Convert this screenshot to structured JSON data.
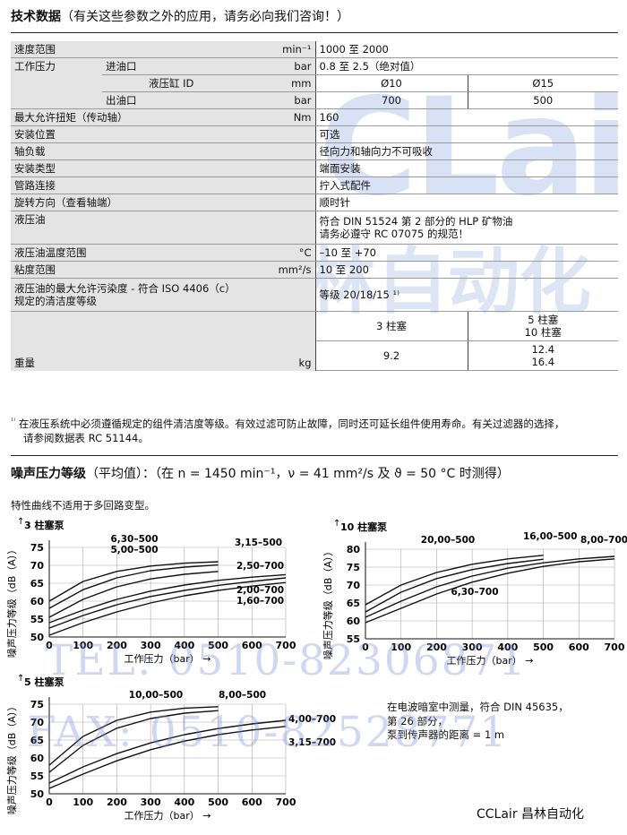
{
  "specs": {
    "title": "技术数据",
    "title_note": "（有关这些参数之外的应用，请务必向我们咨询！）",
    "rows": {
      "speed": {
        "label": "速度范围",
        "unit": "min⁻¹",
        "value": "1000 至 2000"
      },
      "pressure": {
        "label": "工作压力",
        "inlet_label": "进油口",
        "inlet_unit": "bar",
        "inlet_value": "0.8 至 2.5（绝对值）",
        "cyl_label": "液压缸 ID",
        "cyl_unit": "mm",
        "cyl_a": "Ø10",
        "cyl_b": "Ø15",
        "outlet_label": "出油口",
        "outlet_unit": "bar",
        "outlet_a": "700",
        "outlet_b": "500"
      },
      "torque": {
        "label": "最大允许扭矩（传动轴）",
        "unit": "Nm",
        "value": "160"
      },
      "mount_pos": {
        "label": "安装位置",
        "value": "可选"
      },
      "shaft_load": {
        "label": "轴负载",
        "value": "径向力和轴向力不可吸收"
      },
      "mount_type": {
        "label": "安装类型",
        "value": "端面安装"
      },
      "piping": {
        "label": "管路连接",
        "value": "拧入式配件"
      },
      "rotation": {
        "label": "旋转方向（查看轴端）",
        "value": "顺时针"
      },
      "fluid": {
        "label": "液压油",
        "value_1": "符合 DIN 51524 第 2 部分的 HLP 矿物油",
        "value_2": "请务必遵守 RC 07075 的规范！"
      },
      "fluid_temp": {
        "label": "液压油温度范围",
        "unit": "°C",
        "value": "–10 至 +70"
      },
      "viscosity": {
        "label": "粘度范围",
        "unit": "mm²/s",
        "value": "10 至 200"
      },
      "cleanliness": {
        "label_1": "液压油的最大允许污染度 - 符合 ISO 4406（c）",
        "label_2": "规定的清洁度等级",
        "value": "等级 20/18/15 ¹⁾"
      },
      "weight": {
        "label": "重量",
        "unit": "kg",
        "col_a": "3 柱塞",
        "col_b": "5 柱塞",
        "col_c": "10 柱塞",
        "val_a": "9.2",
        "val_b": "12.4",
        "val_c": "16.4"
      }
    }
  },
  "footnote": {
    "mark": "¹⁾",
    "line_1": "在液压系统中必须遵循规定的组件清洁度等级。有效过滤可防止故障，同时还可延长组件使用寿命。有关过滤器的选择，",
    "line_2": "请参阅数据表 RC 51144。"
  },
  "noise": {
    "title": "噪声压力等级",
    "title_note": "（平均值）：（在 n = 1450 min⁻¹，ν = 41 mm²/s 及 ϑ = 50 °C 时测得）",
    "note": "特性曲线不适用于多回路变型。",
    "measure_1": "在电波暗室中测量，符合 DIN 45635，",
    "measure_2": "第 26 部分，",
    "measure_3": "泵到传声器的距离 = 1 m"
  },
  "chart_data": [
    {
      "type": "line",
      "title": "3 柱塞泵",
      "xlabel": "工作压力（bar）",
      "ylabel": "噪声压力等级（dB（A））",
      "xlim": [
        0,
        700
      ],
      "ylim": [
        50,
        75
      ],
      "grid": true,
      "x_ticks": [
        0,
        100,
        200,
        300,
        400,
        500,
        600,
        700
      ],
      "y_ticks": [
        50,
        55,
        60,
        65,
        70,
        75
      ],
      "series": [
        {
          "name": "6,30–500",
          "x": [
            0,
            100,
            200,
            300,
            400,
            500
          ],
          "y": [
            60,
            65.5,
            68.3,
            69.8,
            70.6,
            71
          ]
        },
        {
          "name": "5,00–500",
          "x": [
            0,
            100,
            200,
            300,
            400,
            500
          ],
          "y": [
            58,
            63.2,
            66.5,
            68.5,
            69.5,
            70.1
          ]
        },
        {
          "name": "3,15–500",
          "x": [
            0,
            100,
            200,
            300,
            400,
            500
          ],
          "y": [
            55.5,
            60.5,
            64,
            66.2,
            67.5,
            68.3
          ]
        },
        {
          "name": "2,50–700",
          "x": [
            0,
            100,
            200,
            300,
            400,
            500,
            600,
            700
          ],
          "y": [
            54,
            57.5,
            60.5,
            62.8,
            64.5,
            65.8,
            66.7,
            67.4
          ]
        },
        {
          "name": "2,00–700",
          "x": [
            0,
            100,
            200,
            300,
            400,
            500,
            600,
            700
          ],
          "y": [
            52.5,
            56,
            59,
            61.3,
            63,
            64.4,
            65.5,
            66.5
          ]
        },
        {
          "name": "1,60–700",
          "x": [
            0,
            100,
            200,
            300,
            400,
            500,
            600,
            700
          ],
          "y": [
            50.5,
            54,
            57,
            59.5,
            61.5,
            63,
            64.2,
            65.2
          ]
        }
      ]
    },
    {
      "type": "line",
      "title": "10 柱塞泵",
      "xlabel": "工作压力（bar）",
      "ylabel": "噪声压力等级（dB（A））",
      "xlim": [
        0,
        700
      ],
      "ylim": [
        55,
        80
      ],
      "grid": true,
      "x_ticks": [
        0,
        100,
        200,
        300,
        400,
        500,
        600,
        700
      ],
      "y_ticks": [
        55,
        60,
        65,
        70,
        75,
        80
      ],
      "series": [
        {
          "name": "20,00–500",
          "x": [
            0,
            100,
            200,
            300,
            400,
            500
          ],
          "y": [
            64.5,
            70,
            73.5,
            75.8,
            77.3,
            78.3
          ]
        },
        {
          "name": "16,00–500",
          "x": [
            0,
            100,
            200,
            300,
            400,
            500
          ],
          "y": [
            62.5,
            68,
            71.8,
            74.3,
            76,
            77.2
          ]
        },
        {
          "name": "8,00–700",
          "x": [
            0,
            100,
            200,
            300,
            400,
            500,
            600,
            700
          ],
          "y": [
            61,
            65.5,
            69.5,
            72.5,
            74.7,
            76.2,
            77.3,
            78
          ]
        },
        {
          "name": "6,30–700",
          "x": [
            0,
            100,
            200,
            300,
            400,
            500,
            600,
            700
          ],
          "y": [
            59.5,
            63.5,
            67.5,
            70.8,
            73.3,
            75.2,
            76.5,
            77.3
          ]
        }
      ]
    },
    {
      "type": "line",
      "title": "5 柱塞泵",
      "xlabel": "工作压力（bar）",
      "ylabel": "噪声压力等级（dB（A））",
      "xlim": [
        0,
        700
      ],
      "ylim": [
        50,
        75
      ],
      "grid": true,
      "x_ticks": [
        0,
        100,
        200,
        300,
        400,
        500,
        600,
        700
      ],
      "y_ticks": [
        50,
        55,
        60,
        65,
        70,
        75
      ],
      "series": [
        {
          "name": "10,00–500",
          "x": [
            0,
            100,
            200,
            300,
            400,
            500
          ],
          "y": [
            58,
            66,
            70.5,
            72.8,
            73.9,
            74.3
          ]
        },
        {
          "name": "8,00–500",
          "x": [
            0,
            100,
            200,
            300,
            400,
            500
          ],
          "y": [
            56,
            63.5,
            68.3,
            71,
            72.5,
            73.2
          ]
        },
        {
          "name": "4,00–700",
          "x": [
            0,
            100,
            200,
            300,
            400,
            500,
            600,
            700
          ],
          "y": [
            53,
            57.5,
            61.2,
            64.2,
            66.5,
            68.2,
            69.5,
            70.5
          ]
        },
        {
          "name": "3,15–700",
          "x": [
            0,
            100,
            200,
            300,
            400,
            500,
            600,
            700
          ],
          "y": [
            51.5,
            55.5,
            59.2,
            62.3,
            64.7,
            66.5,
            67.8,
            68.8
          ]
        }
      ]
    }
  ],
  "watermark": {
    "tel": "TEL: 0510-82306871",
    "fax": "FAX: 0510-82528771",
    "logo": "CCLair",
    "logo_cn": "昌林自动化"
  },
  "brand": "CCLair 昌林自动化"
}
